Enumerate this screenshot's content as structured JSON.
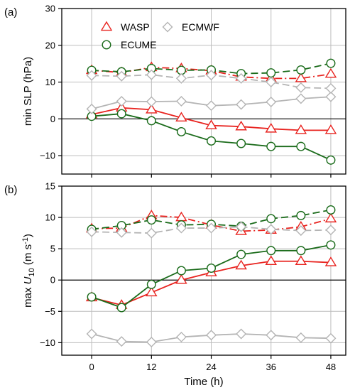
{
  "chart_data": [
    {
      "type": "line",
      "panel_label": "(a)",
      "ylabel": "min SLP (hPa)",
      "xlabel": "",
      "xlim": [
        -6,
        51
      ],
      "ylim": [
        -15,
        30
      ],
      "xticks": [
        "0",
        "12",
        "24",
        "36",
        "48"
      ],
      "xtick_values": [
        0,
        12,
        24,
        36,
        48
      ],
      "yticks": [
        "−10",
        "0",
        "10",
        "20",
        "30"
      ],
      "ytick_values": [
        -10,
        0,
        10,
        20,
        30
      ],
      "grid": true,
      "zero_line": true,
      "legend": {
        "placement": "top",
        "entries": [
          {
            "label": "WASP",
            "color": "#e8231f",
            "marker": "triangle"
          },
          {
            "label": "ECMWF",
            "color": "#b4b4b4",
            "marker": "diamond"
          },
          {
            "label": "ECUME",
            "color": "#1a6b1a",
            "marker": "circle"
          }
        ]
      },
      "x": [
        0,
        6,
        12,
        18,
        24,
        30,
        36,
        42,
        48
      ],
      "series": [
        {
          "model": "WASP",
          "style": "solid",
          "color": "#e8231f",
          "marker": "triangle",
          "values": [
            1.2,
            3.0,
            2.5,
            0.3,
            -1.8,
            -2.1,
            -2.7,
            -3.1,
            -3.1
          ]
        },
        {
          "model": "WASP",
          "style": "dashdot",
          "color": "#e8231f",
          "marker": "triangle",
          "values": [
            13.2,
            12.6,
            14.0,
            13.7,
            13.1,
            11.4,
            11.0,
            11.0,
            12.2
          ]
        },
        {
          "model": "ECUME",
          "style": "solid",
          "color": "#1a6b1a",
          "marker": "circle",
          "values": [
            0.7,
            1.4,
            -0.5,
            -3.5,
            -6.0,
            -6.7,
            -7.5,
            -7.5,
            -11.2
          ]
        },
        {
          "model": "ECUME",
          "style": "dashed",
          "color": "#1a6b1a",
          "marker": "circle",
          "values": [
            13.2,
            12.8,
            13.7,
            13.2,
            13.3,
            12.3,
            12.5,
            13.3,
            15.1
          ]
        },
        {
          "model": "ECMWF",
          "style": "solid",
          "color": "#b4b4b4",
          "marker": "diamond",
          "values": [
            2.7,
            4.8,
            4.7,
            4.8,
            3.6,
            3.9,
            4.6,
            5.5,
            6.0
          ]
        },
        {
          "model": "ECMWF",
          "style": "dashed",
          "color": "#b4b4b4",
          "marker": "diamond",
          "values": [
            11.8,
            11.6,
            12.0,
            11.0,
            11.9,
            11.0,
            10.0,
            8.5,
            8.3
          ]
        }
      ]
    },
    {
      "type": "line",
      "panel_label": "(b)",
      "ylabel": "max U10 (m s-1)",
      "ylabel_parts": [
        "max ",
        "U",
        "10",
        " (m s",
        "-1",
        ")"
      ],
      "xlabel": "Time (h)",
      "xlim": [
        -6,
        51
      ],
      "ylim": [
        -12,
        15
      ],
      "xticks": [
        "0",
        "12",
        "24",
        "36",
        "48"
      ],
      "xtick_values": [
        0,
        12,
        24,
        36,
        48
      ],
      "yticks": [
        "−10",
        "−5",
        "0",
        "5",
        "10",
        "15"
      ],
      "ytick_values": [
        -10,
        -5,
        0,
        5,
        10,
        15
      ],
      "grid": true,
      "zero_line": true,
      "x": [
        0,
        6,
        12,
        18,
        24,
        30,
        36,
        42,
        48
      ],
      "series": [
        {
          "model": "WASP",
          "style": "solid",
          "color": "#e8231f",
          "marker": "triangle",
          "values": [
            -2.8,
            -4.0,
            -2.0,
            0.0,
            1.2,
            2.3,
            3.0,
            3.0,
            2.8
          ]
        },
        {
          "model": "WASP",
          "style": "dashdot",
          "color": "#e8231f",
          "marker": "triangle",
          "values": [
            8.2,
            8.3,
            10.3,
            10.0,
            8.8,
            7.8,
            8.0,
            8.5,
            9.8
          ]
        },
        {
          "model": "ECUME",
          "style": "solid",
          "color": "#1a6b1a",
          "marker": "circle",
          "values": [
            -2.7,
            -4.4,
            -0.7,
            1.5,
            1.9,
            4.1,
            4.7,
            4.7,
            5.6
          ]
        },
        {
          "model": "ECUME",
          "style": "dashed",
          "color": "#1a6b1a",
          "marker": "circle",
          "values": [
            8.1,
            8.7,
            9.6,
            8.8,
            8.9,
            8.6,
            9.8,
            10.3,
            11.2
          ]
        },
        {
          "model": "ECMWF",
          "style": "solid",
          "color": "#b4b4b4",
          "marker": "diamond",
          "values": [
            -8.6,
            -9.8,
            -9.9,
            -9.1,
            -8.8,
            -8.6,
            -8.8,
            -9.2,
            -9.3
          ]
        },
        {
          "model": "ECMWF",
          "style": "dashed",
          "color": "#b4b4b4",
          "marker": "diamond",
          "values": [
            7.7,
            7.6,
            7.5,
            8.3,
            8.3,
            8.5,
            8.1,
            7.9,
            8.0
          ]
        }
      ]
    }
  ]
}
